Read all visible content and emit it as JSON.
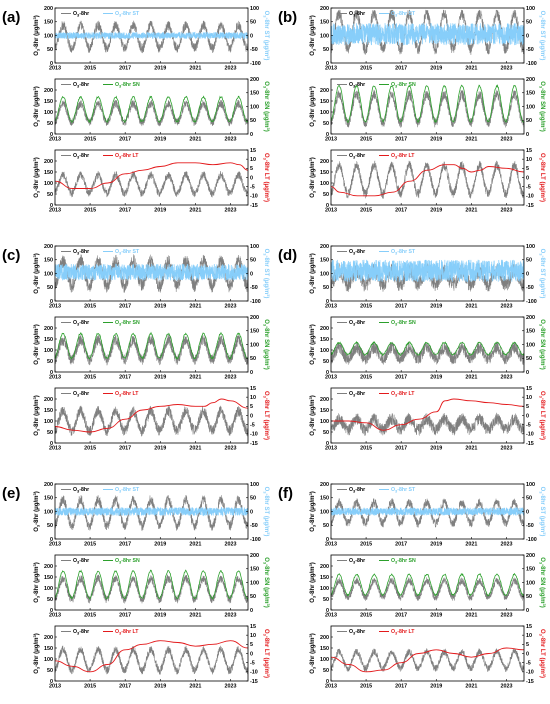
{
  "colors": {
    "observed": "#7f7f7f",
    "st": "#87cefa",
    "sn": "#2ca02c",
    "lt": "#e31a1c",
    "axis": "#000000"
  },
  "panels": [
    {
      "label": "(a)"
    },
    {
      "label": "(b)"
    },
    {
      "label": "(c)"
    },
    {
      "label": "(d)"
    },
    {
      "label": "(e)"
    },
    {
      "label": "(f)"
    }
  ],
  "chart_data": {
    "type": "line",
    "x_range": [
      "2013",
      "2024"
    ],
    "x_ticks": [
      "2013",
      "2015",
      "2017",
      "2019",
      "2021",
      "2023"
    ],
    "left_ylabel_sub": [
      "O",
      "3",
      "-8hr (μg/m",
      "3",
      ")"
    ],
    "rows": [
      {
        "component": "ST",
        "legend_observed": [
          "O",
          "3",
          "-8hr"
        ],
        "legend_component": [
          "O",
          "3",
          "-8hr ST"
        ],
        "right_ylabel": [
          "O",
          "3",
          "-8hr ST (μg/m",
          "3",
          ")"
        ],
        "left_ylim": [
          0,
          200
        ],
        "left_ticks": [
          "0",
          "50",
          "100",
          "150",
          "200"
        ],
        "right_ylim": [
          -100,
          100
        ],
        "right_ticks": [
          "-100",
          "-50",
          "0",
          "50",
          "100"
        ]
      },
      {
        "component": "SN",
        "legend_observed": [
          "O",
          "3",
          "-8hr"
        ],
        "legend_component": [
          "O",
          "3",
          "-8hr SN"
        ],
        "right_ylabel": [
          "O",
          "3",
          "-8hr SN (μg/m",
          "3",
          ")"
        ],
        "left_ylim": [
          0,
          250
        ],
        "left_ticks": [
          "0",
          "50",
          "100",
          "150",
          "200"
        ],
        "right_ylim": [
          0,
          200
        ],
        "right_ticks": [
          "0",
          "50",
          "100",
          "150",
          "200"
        ]
      },
      {
        "component": "LT",
        "legend_observed": [
          "O",
          "3",
          "-8hr"
        ],
        "legend_component": [
          "O",
          "3",
          "-8hr LT"
        ],
        "right_ylabel": [
          "O",
          "3",
          "-8hr LT (μg/m",
          "3",
          ")"
        ],
        "left_ylim": [
          0,
          250
        ],
        "left_ticks": [
          "0",
          "50",
          "100",
          "150",
          "200"
        ],
        "right_ylim": [
          -15,
          15
        ],
        "right_ticks": [
          "-15",
          "-10",
          "-5",
          "0",
          "5",
          "10",
          "15"
        ]
      }
    ],
    "series_by_panel": [
      {
        "panel": "(a)",
        "observed": {
          "mean": 95,
          "seasonal_amp": 42,
          "noise": 18
        },
        "st": {
          "mean": 0,
          "amp": 12
        },
        "sn": {
          "mean": 90,
          "amp": 45
        },
        "lt": [
          [
            2013.0,
            -2
          ],
          [
            2014.0,
            -6
          ],
          [
            2015.0,
            -6
          ],
          [
            2016.0,
            -3
          ],
          [
            2017.0,
            2
          ],
          [
            2018.0,
            4
          ],
          [
            2019.0,
            6
          ],
          [
            2020.0,
            8
          ],
          [
            2021.0,
            8
          ],
          [
            2022.0,
            7
          ],
          [
            2023.0,
            8
          ],
          [
            2023.5,
            7
          ],
          [
            2024.0,
            4
          ]
        ]
      },
      {
        "panel": "(b)",
        "observed": {
          "mean": 115,
          "seasonal_amp": 65,
          "noise": 22
        },
        "st": {
          "mean": 5,
          "amp": 40
        },
        "sn": {
          "mean": 110,
          "amp": 65
        },
        "lt": [
          [
            2013.0,
            -5
          ],
          [
            2013.5,
            -8
          ],
          [
            2014.5,
            -10
          ],
          [
            2015.5,
            -10
          ],
          [
            2016.5,
            -8
          ],
          [
            2017.5,
            -2
          ],
          [
            2018.5,
            4
          ],
          [
            2019.5,
            7
          ],
          [
            2020.0,
            7
          ],
          [
            2020.5,
            5
          ],
          [
            2021.0,
            3
          ],
          [
            2021.5,
            4
          ],
          [
            2022.0,
            6
          ],
          [
            2023.0,
            5
          ],
          [
            2024.0,
            3
          ]
        ]
      },
      {
        "panel": "(c)",
        "observed": {
          "mean": 100,
          "seasonal_amp": 45,
          "noise": 25
        },
        "st": {
          "mean": 5,
          "amp": 30
        },
        "sn": {
          "mean": 95,
          "amp": 45
        },
        "lt": [
          [
            2013.0,
            -6
          ],
          [
            2014.0,
            -8
          ],
          [
            2015.0,
            -9
          ],
          [
            2016.0,
            -7
          ],
          [
            2017.0,
            -2
          ],
          [
            2018.0,
            3
          ],
          [
            2019.0,
            5
          ],
          [
            2020.0,
            6
          ],
          [
            2021.0,
            5
          ],
          [
            2021.5,
            5
          ],
          [
            2022.0,
            7
          ],
          [
            2022.5,
            9
          ],
          [
            2023.0,
            8
          ],
          [
            2024.0,
            4
          ]
        ]
      },
      {
        "panel": "(d)",
        "observed": {
          "mean": 85,
          "seasonal_amp": 25,
          "noise": 28
        },
        "st": {
          "mean": 10,
          "amp": 40
        },
        "sn": {
          "mean": 85,
          "amp": 22
        },
        "lt": [
          [
            2013.0,
            -3
          ],
          [
            2014.0,
            -3
          ],
          [
            2015.0,
            -4
          ],
          [
            2016.0,
            -8
          ],
          [
            2017.0,
            -5
          ],
          [
            2018.0,
            -2
          ],
          [
            2019.0,
            2
          ],
          [
            2019.5,
            8
          ],
          [
            2020.0,
            9
          ],
          [
            2021.0,
            8
          ],
          [
            2022.0,
            7
          ],
          [
            2023.0,
            6
          ],
          [
            2024.0,
            5
          ]
        ]
      },
      {
        "panel": "(e)",
        "observed": {
          "mean": 95,
          "seasonal_amp": 48,
          "noise": 18
        },
        "st": {
          "mean": 0,
          "amp": 15
        },
        "sn": {
          "mean": 92,
          "amp": 50
        },
        "lt": [
          [
            2013.0,
            -4
          ],
          [
            2014.0,
            -7
          ],
          [
            2015.0,
            -10
          ],
          [
            2016.0,
            -6
          ],
          [
            2017.0,
            2
          ],
          [
            2018.0,
            5
          ],
          [
            2019.0,
            7
          ],
          [
            2020.0,
            6
          ],
          [
            2021.0,
            4
          ],
          [
            2022.0,
            5
          ],
          [
            2023.0,
            7
          ],
          [
            2024.0,
            3
          ]
        ]
      },
      {
        "panel": "(f)",
        "observed": {
          "mean": 95,
          "seasonal_amp": 38,
          "noise": 16
        },
        "st": {
          "mean": 0,
          "amp": 14
        },
        "sn": {
          "mean": 92,
          "amp": 38
        },
        "lt": [
          [
            2013.0,
            -2
          ],
          [
            2014.0,
            -6
          ],
          [
            2015.0,
            -10
          ],
          [
            2016.0,
            -9
          ],
          [
            2017.0,
            -5
          ],
          [
            2018.0,
            0
          ],
          [
            2019.0,
            2
          ],
          [
            2020.0,
            0
          ],
          [
            2021.0,
            -2
          ],
          [
            2022.0,
            0
          ],
          [
            2023.0,
            3
          ],
          [
            2024.0,
            2
          ]
        ]
      }
    ]
  }
}
